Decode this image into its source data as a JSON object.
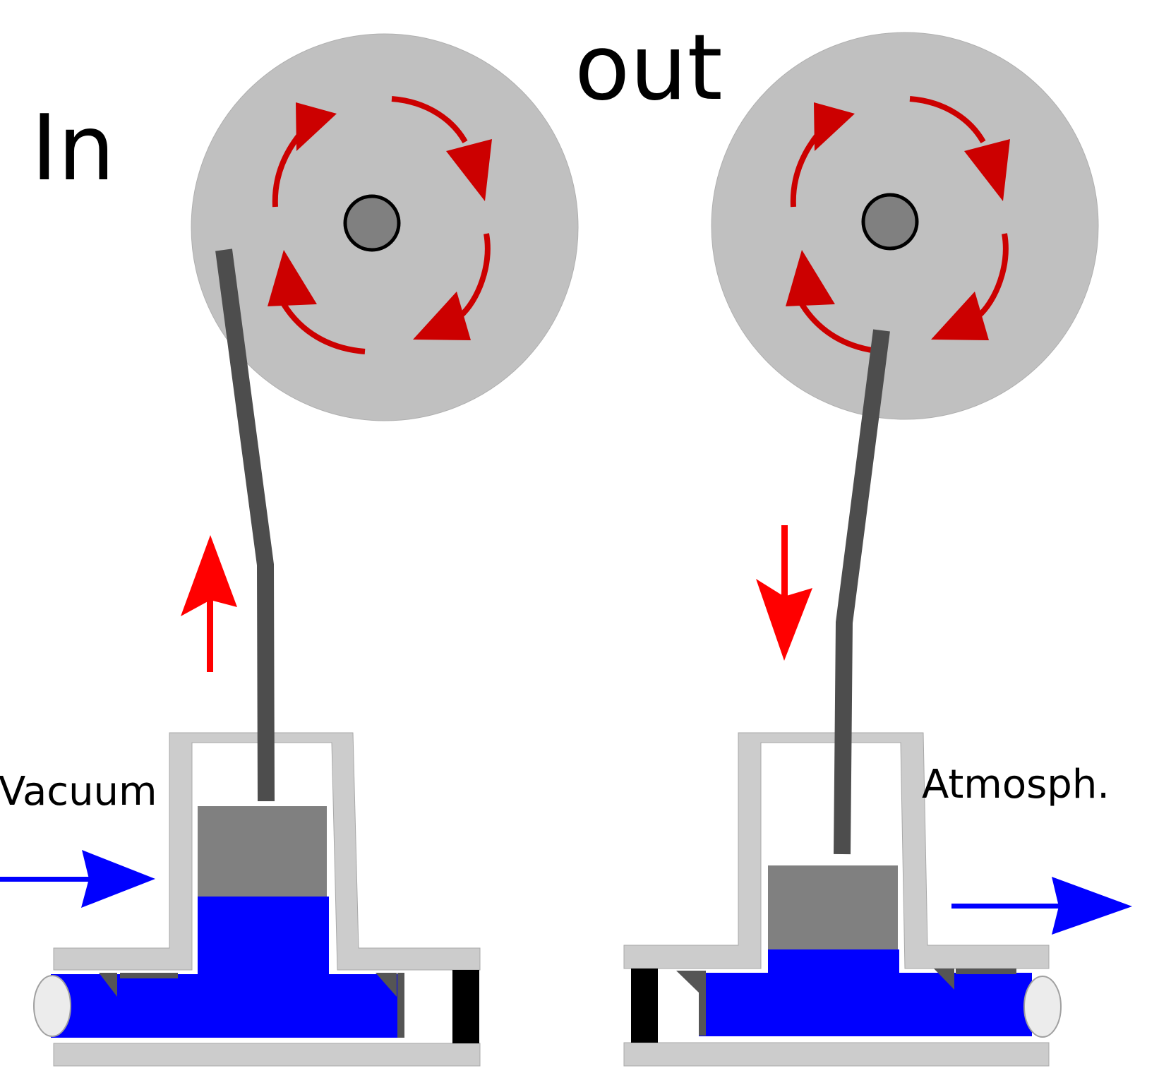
{
  "labels": {
    "in": "In",
    "out": "out",
    "vacuum": "Vacuum",
    "atmosph": "Atmosph."
  },
  "colors": {
    "wheel": "#c0c0c0",
    "hub": "#808080",
    "rod": "#4d4d4d",
    "housing": "#cccccc",
    "piston": "#808080",
    "liquid": "#0000ff",
    "rotation_arrow": "#cc0000",
    "motion_arrow": "#ff0000",
    "flow_arrow": "#0000ff",
    "valve": "#000000"
  }
}
